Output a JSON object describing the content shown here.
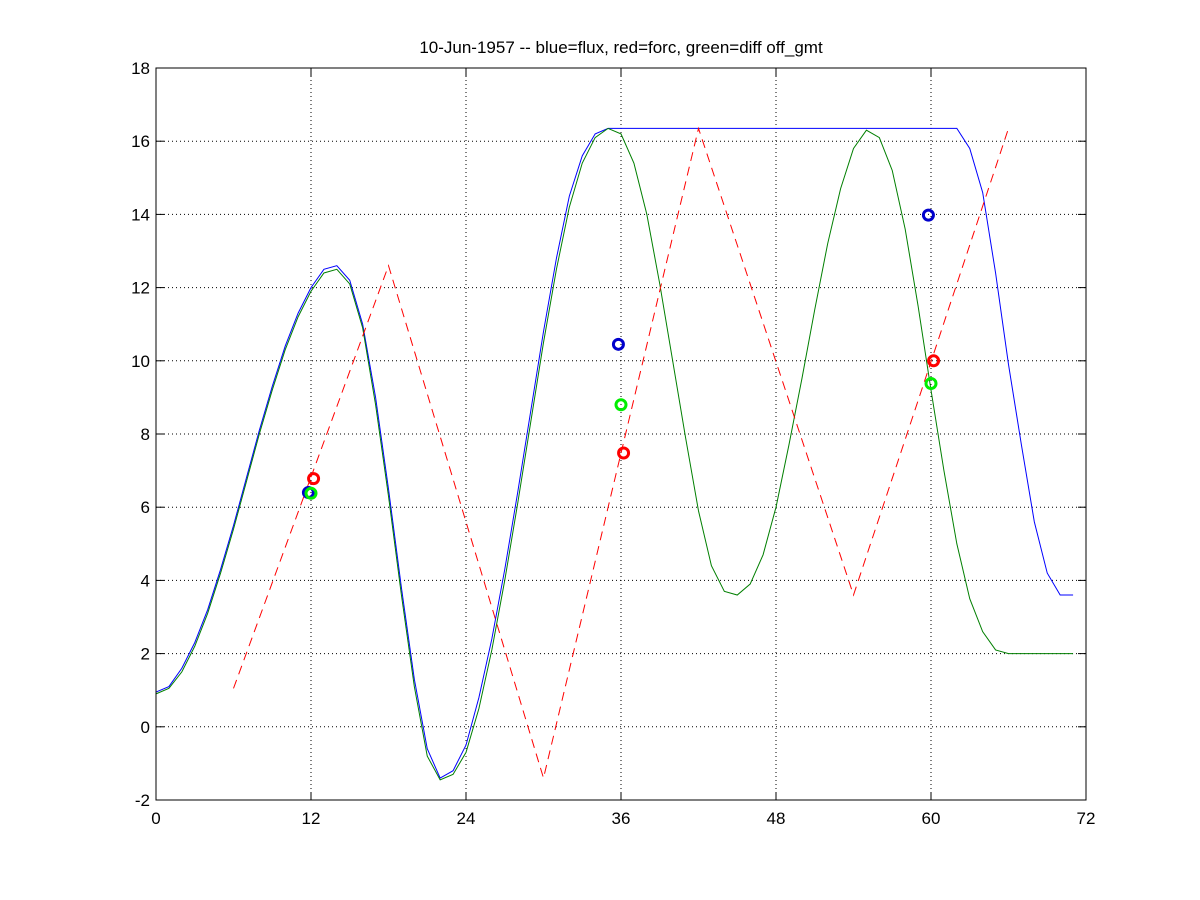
{
  "chart_data": {
    "type": "line",
    "title": "10-Jun-1957 -- blue=flux, red=forc, green=diff off_gmt",
    "xlabel": "",
    "ylabel": "",
    "xlim": [
      0,
      72
    ],
    "ylim": [
      -2,
      18
    ],
    "xticks": [
      0,
      12,
      24,
      36,
      48,
      60,
      72
    ],
    "yticks": [
      -2,
      0,
      2,
      4,
      6,
      8,
      10,
      12,
      14,
      16,
      18
    ],
    "grid": true,
    "legend": "none",
    "series": [
      {
        "color": "#0000ff",
        "style": "solid",
        "x": [
          0,
          1,
          2,
          3,
          4,
          5,
          6,
          7,
          8,
          9,
          10,
          11,
          12,
          13,
          14,
          15,
          16,
          17,
          18,
          19,
          20,
          21,
          22,
          23,
          24,
          25,
          26,
          27,
          28,
          29,
          30,
          31,
          32,
          33,
          34,
          35,
          36,
          37,
          38,
          39,
          40,
          41,
          42,
          43,
          44,
          45,
          46,
          47,
          48,
          49,
          50,
          51,
          52,
          53,
          54,
          55,
          56,
          57,
          58,
          59,
          60,
          61,
          62,
          63,
          64,
          65,
          66,
          67,
          68,
          69,
          70,
          71
        ],
        "y": [
          0.95,
          1.1,
          1.6,
          2.3,
          3.2,
          4.3,
          5.5,
          6.8,
          8.1,
          9.3,
          10.4,
          11.3,
          12.0,
          12.5,
          12.6,
          12.2,
          11.0,
          9.0,
          6.5,
          3.8,
          1.3,
          -0.6,
          -1.4,
          -1.2,
          -0.5,
          0.8,
          2.4,
          4.3,
          6.4,
          8.6,
          10.8,
          12.8,
          14.5,
          15.6,
          16.2,
          16.35,
          16.35,
          16.35,
          16.35,
          16.35,
          16.35,
          16.35,
          16.35,
          16.35,
          16.35,
          16.35,
          16.35,
          16.35,
          16.35,
          16.35,
          16.35,
          16.35,
          16.35,
          16.35,
          16.35,
          16.35,
          16.35,
          16.35,
          16.35,
          16.35,
          16.35,
          16.35,
          16.35,
          15.8,
          14.6,
          12.4,
          9.9,
          7.7,
          5.6,
          4.2,
          3.6,
          3.6
        ]
      },
      {
        "color": "#007f00",
        "style": "solid",
        "x": [
          0,
          1,
          2,
          3,
          4,
          5,
          6,
          7,
          8,
          9,
          10,
          11,
          12,
          13,
          14,
          15,
          16,
          17,
          18,
          19,
          20,
          21,
          22,
          23,
          24,
          25,
          26,
          27,
          28,
          29,
          30,
          31,
          32,
          33,
          34,
          35,
          36,
          37,
          38,
          39,
          40,
          41,
          42,
          43,
          44,
          45,
          46,
          47,
          48,
          49,
          50,
          51,
          52,
          53,
          54,
          55,
          56,
          57,
          58,
          59,
          60,
          61,
          62,
          63,
          64,
          65,
          66,
          67,
          68,
          69,
          70,
          71
        ],
        "y": [
          0.9,
          1.05,
          1.5,
          2.2,
          3.1,
          4.2,
          5.4,
          6.7,
          8.0,
          9.2,
          10.3,
          11.2,
          11.9,
          12.4,
          12.5,
          12.1,
          10.9,
          8.8,
          6.3,
          3.6,
          1.1,
          -0.8,
          -1.45,
          -1.3,
          -0.7,
          0.5,
          2.1,
          4.0,
          6.1,
          8.3,
          10.5,
          12.5,
          14.2,
          15.4,
          16.1,
          16.35,
          16.2,
          15.4,
          14.0,
          12.1,
          10.0,
          7.9,
          5.9,
          4.4,
          3.7,
          3.6,
          3.9,
          4.7,
          6.0,
          7.7,
          9.5,
          11.4,
          13.2,
          14.7,
          15.8,
          16.3,
          16.1,
          15.2,
          13.6,
          11.5,
          9.2,
          7.0,
          5.0,
          3.5,
          2.6,
          2.1,
          2.0,
          2.0,
          2.0,
          2.0,
          2.0,
          2.0
        ]
      },
      {
        "color": "#ff0000",
        "style": "dashed",
        "x": [
          6,
          18,
          30,
          42,
          54,
          66
        ],
        "y": [
          1.05,
          12.6,
          -1.4,
          16.35,
          3.6,
          16.35
        ]
      }
    ],
    "markers": [
      {
        "series": "blue",
        "color": "#0000cc",
        "x": 11.8,
        "y": 6.4
      },
      {
        "series": "green",
        "color": "#00ee00",
        "x": 12.0,
        "y": 6.38
      },
      {
        "series": "red",
        "color": "#ff0000",
        "x": 12.2,
        "y": 6.78
      },
      {
        "series": "blue",
        "color": "#0000cc",
        "x": 35.8,
        "y": 10.45
      },
      {
        "series": "green",
        "color": "#00ee00",
        "x": 36.0,
        "y": 8.8
      },
      {
        "series": "red",
        "color": "#ff0000",
        "x": 36.2,
        "y": 7.48
      },
      {
        "series": "blue",
        "color": "#0000cc",
        "x": 59.8,
        "y": 13.98
      },
      {
        "series": "green",
        "color": "#00ee00",
        "x": 60.0,
        "y": 9.38
      },
      {
        "series": "red",
        "color": "#ff0000",
        "x": 60.2,
        "y": 10.0
      }
    ]
  }
}
